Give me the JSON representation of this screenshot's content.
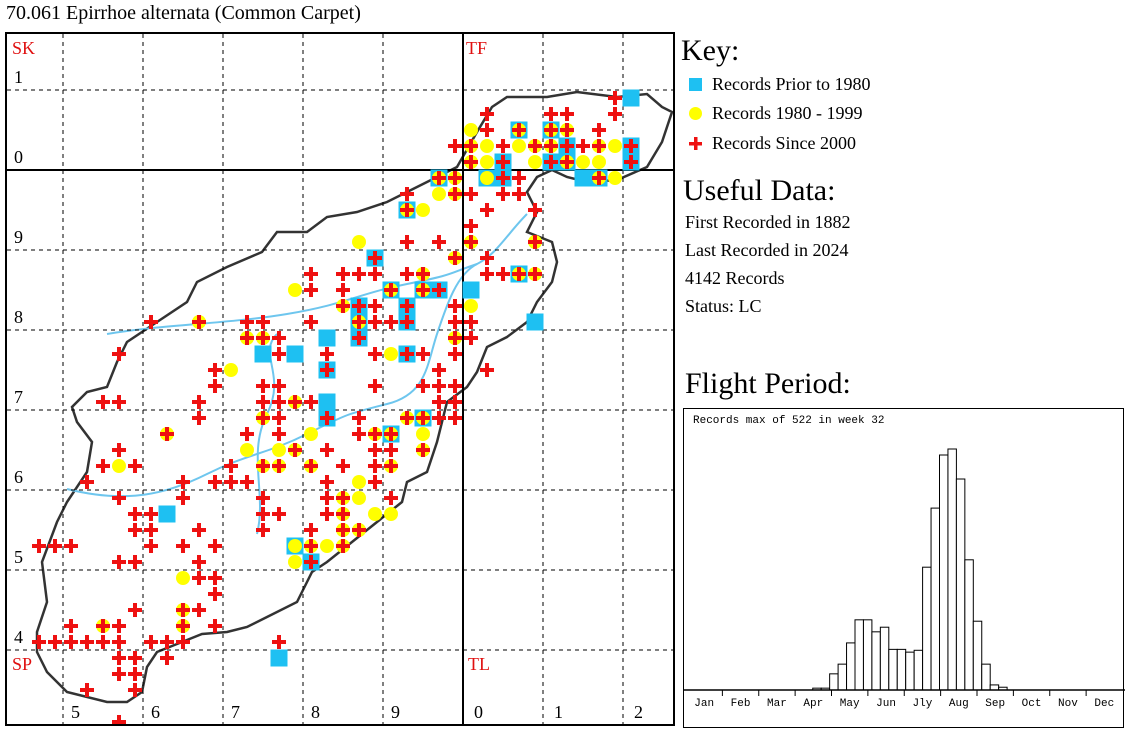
{
  "title": "70.061 Epirrhoe alternata (Common Carpet)",
  "map": {
    "square_labels": [
      "SK",
      "TF",
      "SP",
      "TL"
    ],
    "northing_labels": [
      "1",
      "0",
      "9",
      "8",
      "7",
      "6",
      "5",
      "4"
    ],
    "easting_labels": [
      "5",
      "6",
      "7",
      "8",
      "9",
      "0",
      "1",
      "2"
    ],
    "colors": {
      "prior_1980": "#1ec0f2",
      "1980_1999": "#ffff00",
      "since_2000": "#ee1111",
      "boundary": "#333333",
      "river": "#6ec6ee"
    },
    "records_note": "Each record: [easting_km, northing_km, flags] flags S=prior 1980, C=1980-1999, X=since 2000",
    "records": [
      [
        519,
        309,
        "X"
      ],
      [
        521,
        309,
        "S"
      ],
      [
        503,
        307,
        "X"
      ],
      [
        511,
        307,
        "X"
      ],
      [
        513,
        307,
        "X"
      ],
      [
        519,
        307,
        "X"
      ],
      [
        501,
        305,
        "C"
      ],
      [
        503,
        305,
        "X"
      ],
      [
        507,
        305,
        "SCX"
      ],
      [
        511,
        305,
        "SCX"
      ],
      [
        513,
        305,
        "CX"
      ],
      [
        517,
        305,
        "X"
      ],
      [
        499,
        303,
        "X"
      ],
      [
        501,
        303,
        "CX"
      ],
      [
        503,
        303,
        "C"
      ],
      [
        505,
        303,
        "X"
      ],
      [
        507,
        303,
        "C"
      ],
      [
        509,
        303,
        "CX"
      ],
      [
        511,
        303,
        "CX"
      ],
      [
        513,
        303,
        "SX"
      ],
      [
        515,
        303,
        "X"
      ],
      [
        517,
        303,
        "CX"
      ],
      [
        519,
        303,
        "C"
      ],
      [
        521,
        303,
        "SX"
      ],
      [
        501,
        301,
        "CX"
      ],
      [
        503,
        301,
        "C"
      ],
      [
        505,
        301,
        "SX"
      ],
      [
        509,
        301,
        "C"
      ],
      [
        511,
        301,
        "SX"
      ],
      [
        513,
        301,
        "SCX"
      ],
      [
        515,
        301,
        "C"
      ],
      [
        517,
        301,
        "C"
      ],
      [
        521,
        301,
        "SX"
      ],
      [
        497,
        299,
        "SCX"
      ],
      [
        499,
        299,
        "CX"
      ],
      [
        503,
        299,
        "SC"
      ],
      [
        505,
        299,
        "SX"
      ],
      [
        507,
        299,
        "X"
      ],
      [
        515,
        299,
        "S"
      ],
      [
        517,
        299,
        "SCX"
      ],
      [
        519,
        299,
        "C"
      ],
      [
        493,
        297,
        "X"
      ],
      [
        497,
        297,
        "C"
      ],
      [
        499,
        297,
        "CX"
      ],
      [
        501,
        297,
        "X"
      ],
      [
        505,
        297,
        "X"
      ],
      [
        507,
        297,
        "X"
      ],
      [
        493,
        295,
        "SCX"
      ],
      [
        495,
        295,
        "C"
      ],
      [
        503,
        295,
        "X"
      ],
      [
        509,
        295,
        "X"
      ],
      [
        501,
        293,
        "X"
      ],
      [
        487,
        291,
        "C"
      ],
      [
        493,
        291,
        "X"
      ],
      [
        497,
        291,
        "X"
      ],
      [
        501,
        291,
        "CX"
      ],
      [
        509,
        291,
        "CX"
      ],
      [
        489,
        289,
        "SX"
      ],
      [
        499,
        289,
        "CX"
      ],
      [
        503,
        289,
        "X"
      ],
      [
        481,
        287,
        "X"
      ],
      [
        485,
        287,
        "X"
      ],
      [
        487,
        287,
        "X"
      ],
      [
        489,
        287,
        "X"
      ],
      [
        493,
        287,
        "X"
      ],
      [
        495,
        287,
        "CX"
      ],
      [
        503,
        287,
        "X"
      ],
      [
        505,
        287,
        "X"
      ],
      [
        507,
        287,
        "SCX"
      ],
      [
        509,
        287,
        "CX"
      ],
      [
        479,
        285,
        "C"
      ],
      [
        481,
        285,
        "X"
      ],
      [
        485,
        285,
        "X"
      ],
      [
        491,
        285,
        "SCX"
      ],
      [
        495,
        285,
        "SCX"
      ],
      [
        497,
        285,
        "SX"
      ],
      [
        501,
        285,
        "S"
      ],
      [
        485,
        283,
        "CX"
      ],
      [
        487,
        283,
        "SX"
      ],
      [
        489,
        283,
        "X"
      ],
      [
        493,
        283,
        "SX"
      ],
      [
        499,
        283,
        "X"
      ],
      [
        501,
        283,
        "C"
      ],
      [
        461,
        281,
        "X"
      ],
      [
        467,
        281,
        "CX"
      ],
      [
        473,
        281,
        "X"
      ],
      [
        475,
        281,
        "X"
      ],
      [
        481,
        281,
        "X"
      ],
      [
        487,
        281,
        "SCX"
      ],
      [
        489,
        281,
        "X"
      ],
      [
        491,
        281,
        "X"
      ],
      [
        493,
        281,
        "SX"
      ],
      [
        499,
        281,
        "X"
      ],
      [
        501,
        281,
        "X"
      ],
      [
        509,
        281,
        "S"
      ],
      [
        473,
        279,
        "CX"
      ],
      [
        475,
        279,
        "CX"
      ],
      [
        477,
        279,
        "X"
      ],
      [
        483,
        279,
        "S"
      ],
      [
        487,
        279,
        "SX"
      ],
      [
        499,
        279,
        "CX"
      ],
      [
        501,
        279,
        "X"
      ],
      [
        457,
        277,
        "X"
      ],
      [
        475,
        277,
        "S"
      ],
      [
        477,
        277,
        "X"
      ],
      [
        479,
        277,
        "S"
      ],
      [
        483,
        277,
        "X"
      ],
      [
        489,
        277,
        "X"
      ],
      [
        491,
        277,
        "C"
      ],
      [
        493,
        277,
        "SX"
      ],
      [
        495,
        277,
        "X"
      ],
      [
        499,
        277,
        "X"
      ],
      [
        469,
        275,
        "X"
      ],
      [
        471,
        275,
        "C"
      ],
      [
        483,
        275,
        "SX"
      ],
      [
        497,
        275,
        "X"
      ],
      [
        503,
        275,
        "X"
      ],
      [
        469,
        273,
        "X"
      ],
      [
        475,
        273,
        "X"
      ],
      [
        477,
        273,
        "X"
      ],
      [
        489,
        273,
        "X"
      ],
      [
        495,
        273,
        "X"
      ],
      [
        497,
        273,
        "X"
      ],
      [
        499,
        273,
        "X"
      ],
      [
        455,
        271,
        "X"
      ],
      [
        457,
        271,
        "X"
      ],
      [
        467,
        271,
        "X"
      ],
      [
        475,
        271,
        "X"
      ],
      [
        477,
        271,
        "X"
      ],
      [
        479,
        271,
        "CX"
      ],
      [
        481,
        271,
        "X"
      ],
      [
        483,
        271,
        "S"
      ],
      [
        497,
        271,
        "X"
      ],
      [
        499,
        271,
        "X"
      ],
      [
        467,
        269,
        "X"
      ],
      [
        475,
        269,
        "CX"
      ],
      [
        477,
        269,
        "X"
      ],
      [
        483,
        269,
        "SX"
      ],
      [
        487,
        269,
        "X"
      ],
      [
        493,
        269,
        "CX"
      ],
      [
        495,
        269,
        "SCX"
      ],
      [
        497,
        269,
        "X"
      ],
      [
        499,
        269,
        "X"
      ],
      [
        463,
        267,
        "CX"
      ],
      [
        473,
        267,
        "X"
      ],
      [
        477,
        267,
        "X"
      ],
      [
        481,
        267,
        "C"
      ],
      [
        487,
        267,
        "X"
      ],
      [
        489,
        267,
        "CX"
      ],
      [
        491,
        267,
        "SCX"
      ],
      [
        495,
        267,
        "C"
      ],
      [
        457,
        265,
        "X"
      ],
      [
        473,
        265,
        "C"
      ],
      [
        477,
        265,
        "C"
      ],
      [
        479,
        265,
        "CX"
      ],
      [
        483,
        265,
        "X"
      ],
      [
        489,
        265,
        "X"
      ],
      [
        491,
        265,
        "X"
      ],
      [
        495,
        265,
        "CX"
      ],
      [
        455,
        263,
        "X"
      ],
      [
        457,
        263,
        "C"
      ],
      [
        459,
        263,
        "X"
      ],
      [
        471,
        263,
        "X"
      ],
      [
        475,
        263,
        "CX"
      ],
      [
        477,
        263,
        "CX"
      ],
      [
        481,
        263,
        "CX"
      ],
      [
        485,
        263,
        "X"
      ],
      [
        489,
        263,
        "X"
      ],
      [
        491,
        263,
        "CX"
      ],
      [
        453,
        261,
        "X"
      ],
      [
        465,
        261,
        "X"
      ],
      [
        469,
        261,
        "X"
      ],
      [
        471,
        261,
        "X"
      ],
      [
        473,
        261,
        "X"
      ],
      [
        483,
        261,
        "X"
      ],
      [
        487,
        261,
        "C"
      ],
      [
        489,
        261,
        "X"
      ],
      [
        457,
        259,
        "X"
      ],
      [
        465,
        259,
        "X"
      ],
      [
        475,
        259,
        "X"
      ],
      [
        483,
        259,
        "X"
      ],
      [
        485,
        259,
        "CX"
      ],
      [
        487,
        259,
        "C"
      ],
      [
        491,
        259,
        "X"
      ],
      [
        459,
        257,
        "X"
      ],
      [
        461,
        257,
        "X"
      ],
      [
        463,
        257,
        "S"
      ],
      [
        475,
        257,
        "X"
      ],
      [
        477,
        257,
        "X"
      ],
      [
        483,
        257,
        "X"
      ],
      [
        485,
        257,
        "CX"
      ],
      [
        489,
        257,
        "C"
      ],
      [
        491,
        257,
        "C"
      ],
      [
        459,
        255,
        "X"
      ],
      [
        461,
        255,
        "X"
      ],
      [
        467,
        255,
        "X"
      ],
      [
        475,
        255,
        "X"
      ],
      [
        481,
        255,
        "X"
      ],
      [
        485,
        255,
        "CX"
      ],
      [
        487,
        255,
        "CX"
      ],
      [
        447,
        253,
        "X"
      ],
      [
        449,
        253,
        "X"
      ],
      [
        451,
        253,
        "X"
      ],
      [
        461,
        253,
        "X"
      ],
      [
        465,
        253,
        "X"
      ],
      [
        469,
        253,
        "X"
      ],
      [
        479,
        253,
        "SC"
      ],
      [
        481,
        253,
        "CX"
      ],
      [
        483,
        253,
        "C"
      ],
      [
        485,
        253,
        "CX"
      ],
      [
        457,
        251,
        "X"
      ],
      [
        459,
        251,
        "X"
      ],
      [
        467,
        251,
        "X"
      ],
      [
        479,
        251,
        "C"
      ],
      [
        481,
        251,
        "SX"
      ],
      [
        465,
        249,
        "C"
      ],
      [
        467,
        249,
        "X"
      ],
      [
        469,
        249,
        "X"
      ],
      [
        469,
        247,
        "X"
      ],
      [
        459,
        245,
        "X"
      ],
      [
        465,
        245,
        "CX"
      ],
      [
        467,
        245,
        "X"
      ],
      [
        451,
        243,
        "X"
      ],
      [
        455,
        243,
        "CX"
      ],
      [
        457,
        243,
        "X"
      ],
      [
        465,
        243,
        "CX"
      ],
      [
        469,
        243,
        "X"
      ],
      [
        447,
        241,
        "X"
      ],
      [
        449,
        241,
        "X"
      ],
      [
        451,
        241,
        "X"
      ],
      [
        453,
        241,
        "X"
      ],
      [
        455,
        241,
        "X"
      ],
      [
        457,
        241,
        "X"
      ],
      [
        461,
        241,
        "X"
      ],
      [
        463,
        241,
        "X"
      ],
      [
        465,
        241,
        "X"
      ],
      [
        477,
        241,
        "X"
      ],
      [
        457,
        239,
        "X"
      ],
      [
        459,
        239,
        "X"
      ],
      [
        463,
        239,
        "X"
      ],
      [
        477,
        239,
        "S"
      ],
      [
        457,
        237,
        "X"
      ],
      [
        459,
        237,
        "X"
      ],
      [
        453,
        235,
        "X"
      ],
      [
        459,
        235,
        "X"
      ],
      [
        457,
        231,
        "X"
      ]
    ]
  },
  "key": {
    "heading": "Key:",
    "items": [
      {
        "label": "Records Prior to 1980",
        "icon": "square-icon"
      },
      {
        "label": "Records 1980 - 1999",
        "icon": "circle-icon"
      },
      {
        "label": "Records Since 2000",
        "icon": "cross-icon"
      }
    ]
  },
  "useful_data": {
    "heading": "Useful Data:",
    "lines": [
      "First Recorded in 1882",
      "Last Recorded in 2024",
      "4142 Records",
      "Status: LC"
    ]
  },
  "flight_period": {
    "heading": "Flight Period:",
    "note": "Records max of 522 in week 32"
  },
  "chart_data": {
    "type": "bar",
    "title": "Records max of 522 in week 32",
    "x_unit": "week",
    "weeks": [
      16,
      17,
      18,
      19,
      20,
      21,
      22,
      23,
      24,
      25,
      26,
      27,
      28,
      29,
      30,
      31,
      32,
      33,
      34,
      35,
      36,
      37,
      38
    ],
    "values": [
      4,
      4,
      35,
      56,
      102,
      152,
      152,
      126,
      136,
      88,
      88,
      82,
      86,
      266,
      394,
      509,
      522,
      457,
      282,
      149,
      56,
      11,
      6
    ],
    "ylim": [
      0,
      522
    ],
    "month_labels": [
      "Jan",
      "Feb",
      "Mar",
      "Apr",
      "May",
      "Jun",
      "Jly",
      "Aug",
      "Sep",
      "Oct",
      "Nov",
      "Dec"
    ],
    "grid": false
  }
}
